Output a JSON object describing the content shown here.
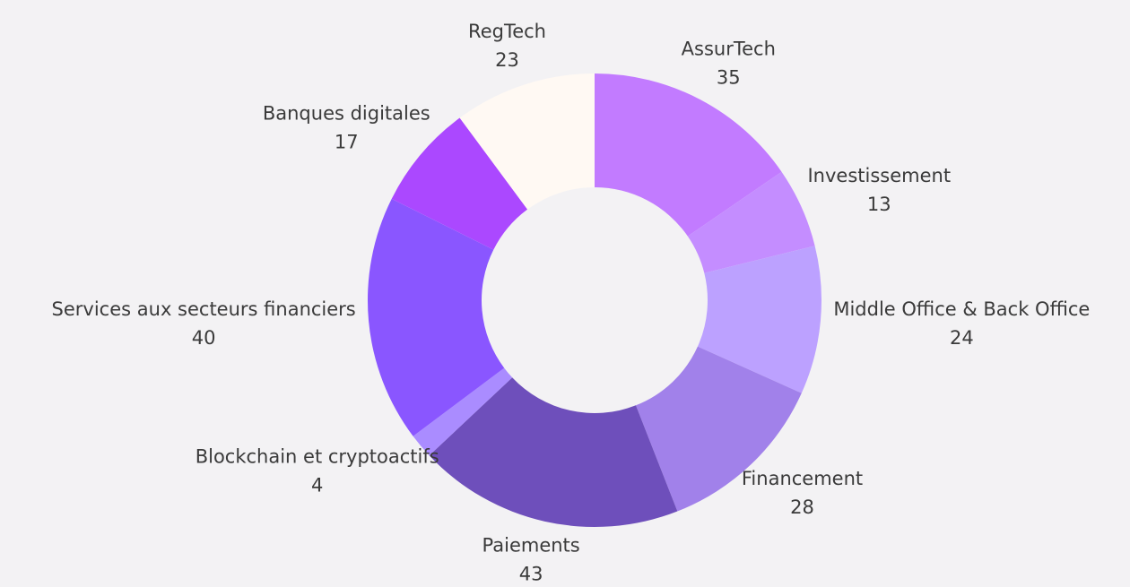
{
  "chart_data": {
    "type": "donut",
    "categories": [
      "AssurTech",
      "Investissement",
      "Middle Office & Back Office",
      "Financement",
      "Paiements",
      "Blockchain et cryptoactifs",
      "Services aux secteurs financiers",
      "Banques digitales",
      "RegTech"
    ],
    "values": [
      35,
      13,
      24,
      28,
      43,
      4,
      40,
      17,
      23
    ],
    "colors": [
      "#c27bff",
      "#c48dff",
      "#bca1ff",
      "#a181ea",
      "#6e4fbb",
      "#aa8cff",
      "#8a56ff",
      "#ab48ff",
      "#fff9f3"
    ]
  }
}
